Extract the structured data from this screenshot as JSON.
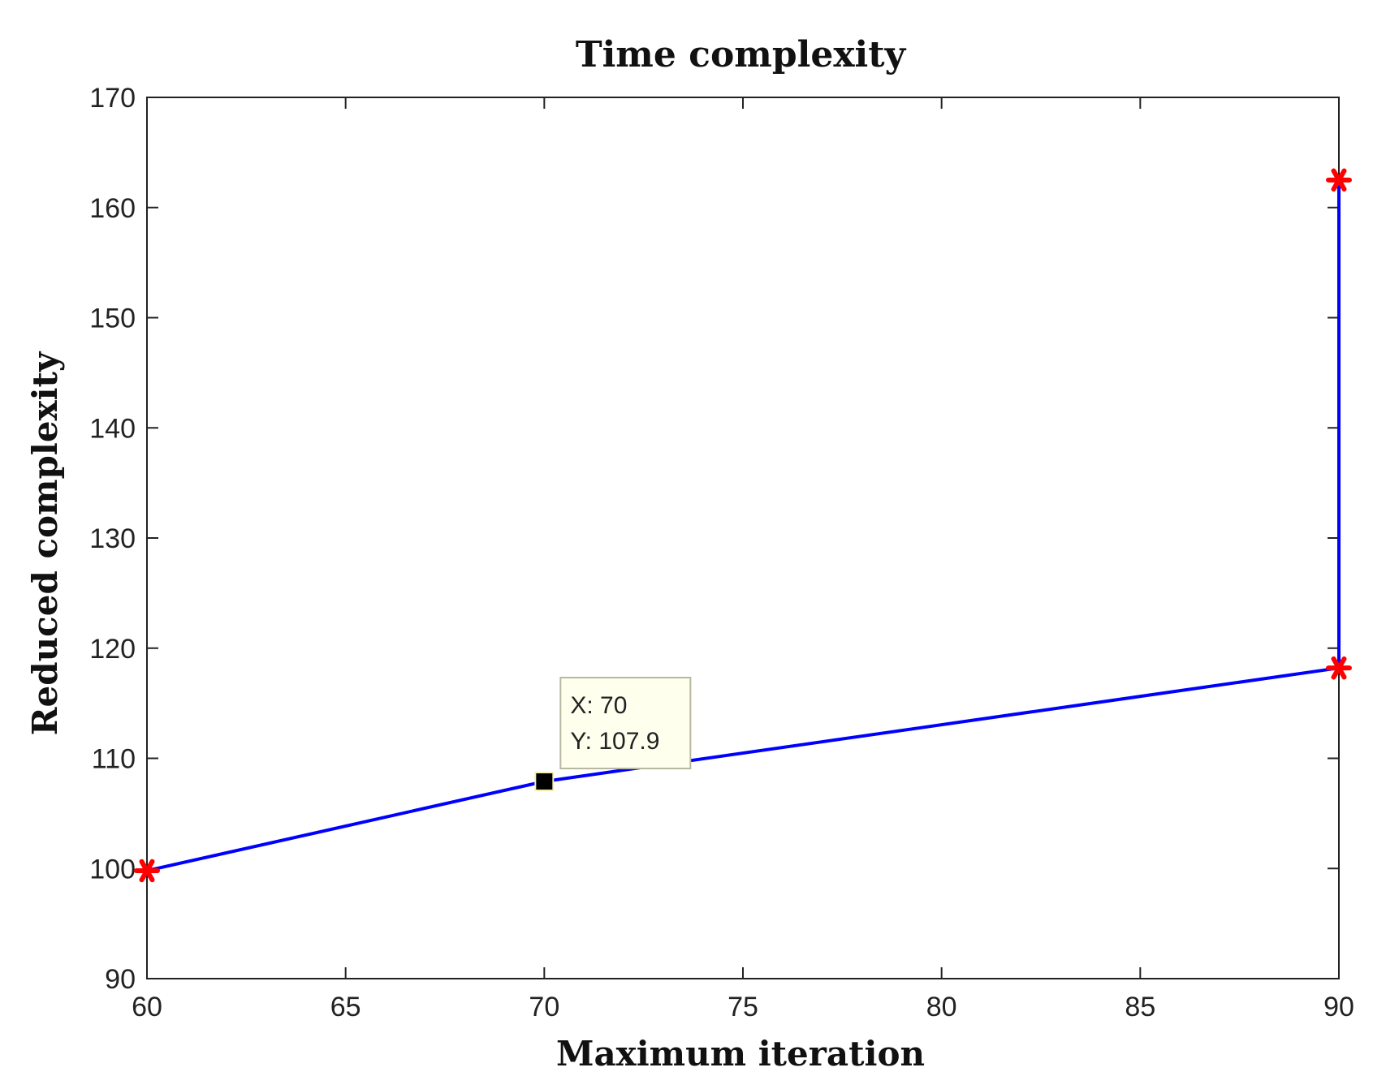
{
  "chart_data": {
    "type": "line",
    "title": "Time complexity",
    "xlabel": "Maximum iteration",
    "ylabel": "Reduced complexity",
    "xlim": [
      60,
      90
    ],
    "ylim": [
      90,
      170
    ],
    "xticks": [
      60,
      65,
      70,
      75,
      80,
      85,
      90
    ],
    "yticks": [
      90,
      100,
      110,
      120,
      130,
      140,
      150,
      160,
      170
    ],
    "grid": false,
    "series": [
      {
        "color": "#0000ff",
        "marker_color": "#ff0000",
        "points": [
          {
            "x": 60,
            "y": 99.8,
            "marker": true
          },
          {
            "x": 70,
            "y": 107.9,
            "marker": false
          },
          {
            "x": 90,
            "y": 118.2,
            "marker": true
          },
          {
            "x": 90,
            "y": 162.5,
            "marker": true
          }
        ]
      }
    ],
    "datatip": {
      "x": 70,
      "y": 107.9,
      "label_x": "X: 70",
      "label_y": "Y: 107.9"
    }
  }
}
